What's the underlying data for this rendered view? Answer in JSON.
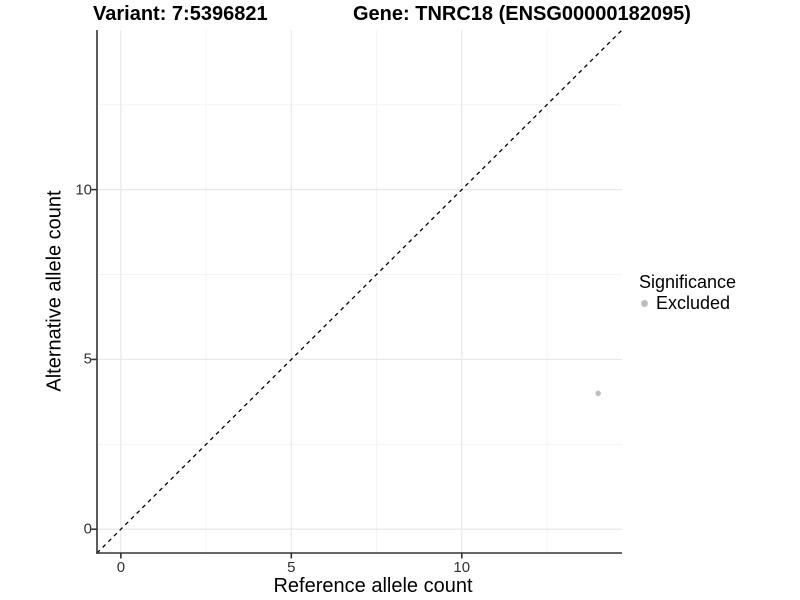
{
  "chart_data": {
    "type": "scatter",
    "titles": {
      "variant": "Variant: 7:5396821",
      "gene": "Gene: TNRC18 (ENSG00000182095)"
    },
    "xlabel": "Reference allele count",
    "ylabel": "Alternative allele count",
    "xlim": [
      -0.7,
      14.7
    ],
    "ylim": [
      -0.7,
      14.7
    ],
    "x_major_ticks": [
      0,
      5,
      10
    ],
    "x_minor_ticks": [
      2.5,
      7.5,
      12.5
    ],
    "y_major_ticks": [
      0,
      5,
      10
    ],
    "y_minor_ticks": [
      2.5,
      7.5,
      12.5
    ],
    "grid": "major and minor gridlines, white background",
    "reference_line": {
      "kind": "identity y=x",
      "from": [
        -0.7,
        -0.7
      ],
      "to": [
        14.7,
        14.7
      ],
      "style": "dashed",
      "color": "#000000"
    },
    "series": [
      {
        "name": "Excluded",
        "color": "#bebebe",
        "marker": "circle",
        "marker_diameter_px": 5.5,
        "points": [
          [
            14,
            4
          ]
        ]
      }
    ],
    "legend": {
      "title": "Significance",
      "position": "right",
      "items": [
        {
          "label": "Excluded",
          "color": "#bebebe",
          "marker": "circle"
        }
      ]
    },
    "colors": {
      "background": "#ffffff",
      "axis_line": "#333333",
      "tick_mark": "#333333",
      "tick_label": "#303030",
      "title_text": "#000000",
      "grid_major": "#e8e8e8",
      "grid_minor": "#f3f3f3",
      "point": "#bebebe"
    }
  }
}
